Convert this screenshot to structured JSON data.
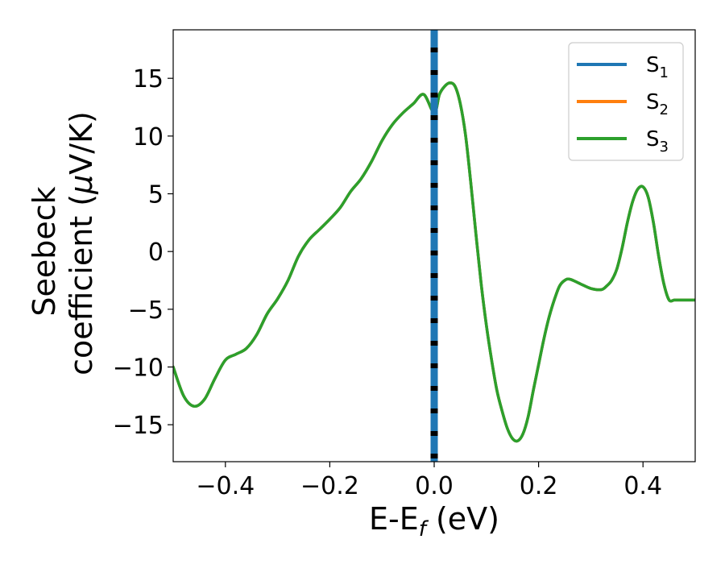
{
  "chart_data": {
    "type": "line",
    "xlabel": "E-E",
    "xlabel_sub": "f",
    "xlabel_unit": " (eV)",
    "ylabel_line1": "Seebeck",
    "ylabel_line2": "coefficient  (",
    "ylabel_mu": "μ",
    "ylabel_unit": "V/K)",
    "xlim": [
      -0.5,
      0.5
    ],
    "ylim": [
      -18.2,
      19.2
    ],
    "xticks": [
      -0.4,
      -0.2,
      0.0,
      0.2,
      0.4
    ],
    "xtick_labels": [
      "−0.4",
      "−0.2",
      "0.0",
      "0.2",
      "0.4"
    ],
    "yticks": [
      -15,
      -10,
      -5,
      0,
      5,
      10,
      15
    ],
    "ytick_labels": [
      "−15",
      "−10",
      "−5",
      "0",
      "5",
      "10",
      "15"
    ],
    "grid": false,
    "legend_position": "top-right",
    "fermi_level_x": 0.0,
    "colors": {
      "s1": "#1f77b4",
      "s2": "#ff7f0e",
      "s3": "#2ca02c",
      "fermi_black": "#000000"
    },
    "x": [
      -0.5,
      -0.48,
      -0.46,
      -0.44,
      -0.42,
      -0.4,
      -0.38,
      -0.36,
      -0.34,
      -0.32,
      -0.3,
      -0.28,
      -0.26,
      -0.24,
      -0.22,
      -0.2,
      -0.18,
      -0.16,
      -0.14,
      -0.12,
      -0.1,
      -0.08,
      -0.06,
      -0.04,
      -0.02,
      0.0,
      0.01,
      0.02,
      0.03,
      0.04,
      0.05,
      0.06,
      0.07,
      0.08,
      0.09,
      0.1,
      0.11,
      0.12,
      0.13,
      0.14,
      0.15,
      0.16,
      0.17,
      0.18,
      0.19,
      0.2,
      0.21,
      0.22,
      0.23,
      0.24,
      0.25,
      0.26,
      0.28,
      0.3,
      0.32,
      0.33,
      0.34,
      0.35,
      0.36,
      0.37,
      0.38,
      0.39,
      0.4,
      0.41,
      0.42,
      0.43,
      0.44,
      0.45,
      0.46,
      0.47,
      0.48,
      0.49,
      0.5
    ],
    "series": [
      {
        "name": "S",
        "sub": "1",
        "color_key": "s1",
        "values": [
          -10.0,
          -12.5,
          -13.4,
          -12.8,
          -11.0,
          -9.4,
          -8.9,
          -8.4,
          -7.2,
          -5.4,
          -4.1,
          -2.5,
          -0.4,
          1.0,
          1.9,
          2.8,
          3.8,
          5.2,
          6.3,
          7.8,
          9.6,
          11.0,
          12.0,
          12.8,
          13.6,
          12.0,
          13.6,
          14.3,
          14.6,
          14.3,
          12.8,
          10.1,
          6.0,
          1.5,
          -2.8,
          -6.4,
          -9.4,
          -12.0,
          -13.8,
          -15.3,
          -16.2,
          -16.4,
          -15.8,
          -14.3,
          -12.0,
          -9.8,
          -7.6,
          -5.7,
          -4.2,
          -3.0,
          -2.5,
          -2.4,
          -2.8,
          -3.2,
          -3.3,
          -3.0,
          -2.5,
          -1.5,
          0.3,
          2.5,
          4.3,
          5.4,
          5.6,
          4.7,
          2.5,
          -0.4,
          -2.8,
          -4.2,
          -4.2,
          -4.2,
          -4.2,
          -4.2,
          -4.2
        ]
      },
      {
        "name": "S",
        "sub": "2",
        "color_key": "s2",
        "values": [
          -10.0,
          -12.5,
          -13.4,
          -12.8,
          -11.0,
          -9.4,
          -8.9,
          -8.4,
          -7.2,
          -5.4,
          -4.1,
          -2.5,
          -0.4,
          1.0,
          1.9,
          2.8,
          3.8,
          5.2,
          6.3,
          7.8,
          9.6,
          11.0,
          12.0,
          12.8,
          13.6,
          12.0,
          13.6,
          14.3,
          14.6,
          14.3,
          12.8,
          10.1,
          6.0,
          1.5,
          -2.8,
          -6.4,
          -9.4,
          -12.0,
          -13.8,
          -15.3,
          -16.2,
          -16.4,
          -15.8,
          -14.3,
          -12.0,
          -9.8,
          -7.6,
          -5.7,
          -4.2,
          -3.0,
          -2.5,
          -2.4,
          -2.8,
          -3.2,
          -3.3,
          -3.0,
          -2.5,
          -1.5,
          0.3,
          2.5,
          4.3,
          5.4,
          5.6,
          4.7,
          2.5,
          -0.4,
          -2.8,
          -4.2,
          -4.2,
          -4.2,
          -4.2,
          -4.2,
          -4.2
        ]
      },
      {
        "name": "S",
        "sub": "3",
        "color_key": "s3",
        "values": [
          -10.0,
          -12.5,
          -13.4,
          -12.8,
          -11.0,
          -9.4,
          -8.9,
          -8.4,
          -7.2,
          -5.4,
          -4.1,
          -2.5,
          -0.4,
          1.0,
          1.9,
          2.8,
          3.8,
          5.2,
          6.3,
          7.8,
          9.6,
          11.0,
          12.0,
          12.8,
          13.6,
          12.0,
          13.6,
          14.3,
          14.6,
          14.3,
          12.8,
          10.1,
          6.0,
          1.5,
          -2.8,
          -6.4,
          -9.4,
          -12.0,
          -13.8,
          -15.3,
          -16.2,
          -16.4,
          -15.8,
          -14.3,
          -12.0,
          -9.8,
          -7.6,
          -5.7,
          -4.2,
          -3.0,
          -2.5,
          -2.4,
          -2.8,
          -3.2,
          -3.3,
          -3.0,
          -2.5,
          -1.5,
          0.3,
          2.5,
          4.3,
          5.4,
          5.6,
          4.7,
          2.5,
          -0.4,
          -2.8,
          -4.2,
          -4.2,
          -4.2,
          -4.2,
          -4.2,
          -4.2
        ]
      }
    ]
  }
}
